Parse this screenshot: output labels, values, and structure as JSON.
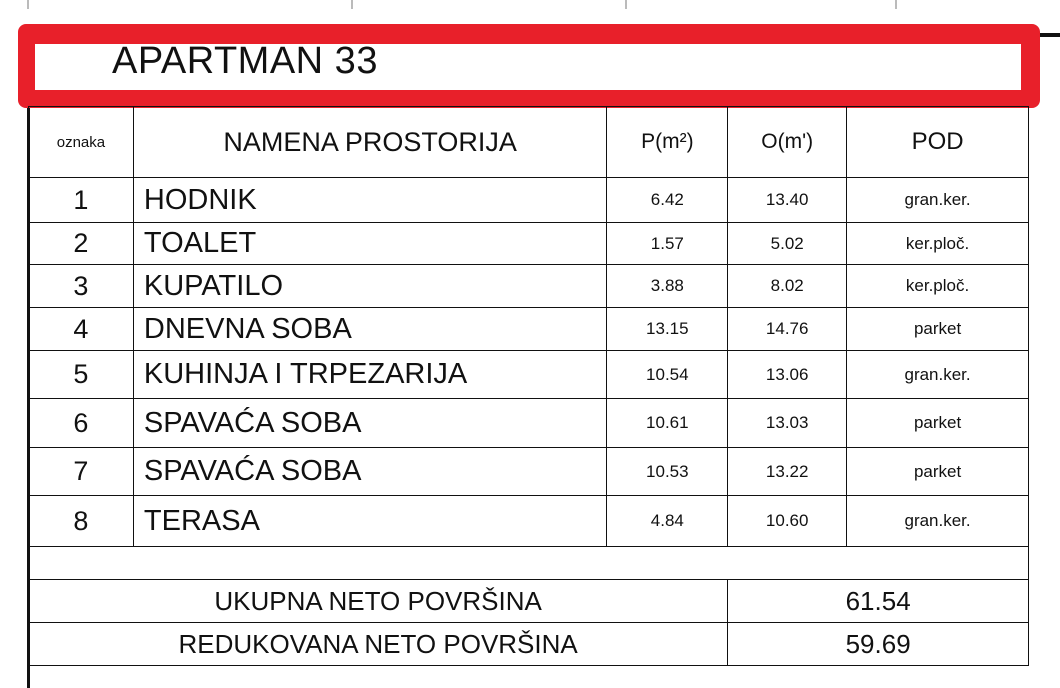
{
  "title": "APARTMAN 33",
  "headers": [
    "oznaka",
    "NAMENA PROSTORIJA",
    "P(m²)",
    "O(m')",
    "POD"
  ],
  "rows": [
    {
      "id": "1",
      "name": "HODNIK",
      "p": "6.42",
      "o": "13.40",
      "pod": "gran.ker."
    },
    {
      "id": "2",
      "name": "TOALET",
      "p": "1.57",
      "o": "5.02",
      "pod": "ker.ploč."
    },
    {
      "id": "3",
      "name": "KUPATILO",
      "p": "3.88",
      "o": "8.02",
      "pod": "ker.ploč."
    },
    {
      "id": "4",
      "name": "DNEVNA SOBA",
      "p": "13.15",
      "o": "14.76",
      "pod": "parket"
    },
    {
      "id": "5",
      "name": "KUHINJA I TRPEZARIJA",
      "p": "10.54",
      "o": "13.06",
      "pod": "gran.ker."
    },
    {
      "id": "6",
      "name": "SPAVAĆA SOBA",
      "p": "10.61",
      "o": "13.03",
      "pod": "parket"
    },
    {
      "id": "7",
      "name": "SPAVAĆA SOBA",
      "p": "10.53",
      "o": "13.22",
      "pod": "parket"
    },
    {
      "id": "8",
      "name": "TERASA",
      "p": "4.84",
      "o": "10.60",
      "pod": "gran.ker."
    }
  ],
  "totals": [
    {
      "label": "UKUPNA NETO POVRŠINA",
      "value": "61.54"
    },
    {
      "label": "REDUKOVANA NETO POVRŠINA",
      "value": "59.69"
    }
  ],
  "colors": {
    "highlight": "#e8202a"
  }
}
